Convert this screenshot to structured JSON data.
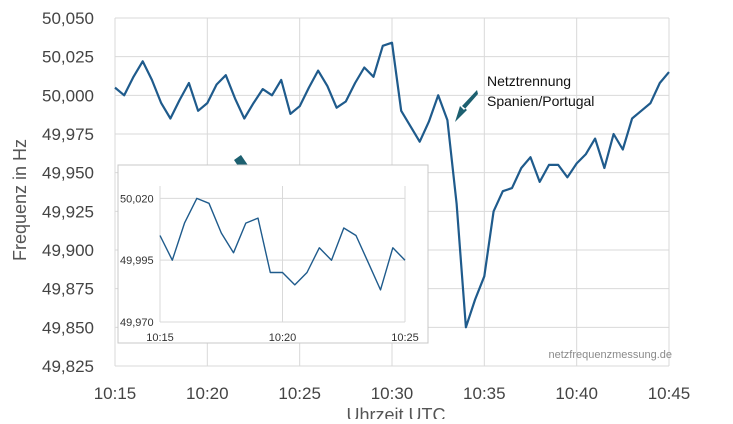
{
  "chart_data": [
    {
      "type": "line",
      "ylabel": "Frequenz in Hz",
      "xlabel": "Uhrzeit UTC",
      "x_unit": "time",
      "x_ticks": [
        "10:15",
        "10:20",
        "10:25",
        "10:30",
        "10:35",
        "10:40",
        "10:45"
      ],
      "xlim": [
        "10:15",
        "10:45"
      ],
      "y_ticks": [
        "49,825",
        "49,850",
        "49,875",
        "49,900",
        "49,925",
        "49,950",
        "49,975",
        "50,000",
        "50,025",
        "50,050"
      ],
      "ylim": [
        49.825,
        50.05
      ],
      "grid": true,
      "line_color": "#1f5b8c",
      "series": [
        {
          "x": [
            "10:15",
            "10:15:30",
            "10:16",
            "10:16:30",
            "10:17",
            "10:17:30",
            "10:18",
            "10:18:30",
            "10:19",
            "10:19:30",
            "10:20",
            "10:20:30",
            "10:21",
            "10:21:30",
            "10:22",
            "10:22:30",
            "10:23",
            "10:23:30",
            "10:24",
            "10:24:30",
            "10:25",
            "10:25:30",
            "10:26",
            "10:26:30",
            "10:27",
            "10:27:30",
            "10:28",
            "10:28:30",
            "10:29",
            "10:29:30",
            "10:30",
            "10:30:30",
            "10:31",
            "10:31:30",
            "10:32",
            "10:32:30",
            "10:33",
            "10:33:30",
            "10:34",
            "10:34:30",
            "10:35",
            "10:35:30",
            "10:36",
            "10:36:30",
            "10:37",
            "10:37:30",
            "10:38",
            "10:38:30",
            "10:39",
            "10:39:30",
            "10:40",
            "10:40:30",
            "10:41",
            "10:41:30",
            "10:42",
            "10:42:30",
            "10:43",
            "10:43:30",
            "10:44",
            "10:44:30",
            "10:45"
          ],
          "values": [
            50.005,
            50.0,
            50.012,
            50.022,
            50.01,
            49.995,
            49.985,
            49.997,
            50.008,
            49.99,
            49.995,
            50.007,
            50.013,
            49.998,
            49.985,
            49.995,
            50.004,
            50.0,
            50.01,
            49.988,
            49.993,
            50.005,
            50.016,
            50.006,
            49.992,
            49.996,
            50.008,
            50.018,
            50.012,
            50.032,
            50.034,
            49.99,
            49.98,
            49.97,
            49.983,
            50.0,
            49.984,
            49.93,
            49.85,
            49.868,
            49.883,
            49.925,
            49.938,
            49.94,
            49.953,
            49.96,
            49.944,
            49.955,
            49.955,
            49.947,
            49.956,
            49.962,
            49.972,
            49.953,
            49.975,
            49.965,
            49.985,
            49.99,
            49.995,
            50.008,
            50.015
          ]
        }
      ]
    },
    {
      "type": "line",
      "x_ticks": [
        "10:15",
        "10:20",
        "10:25"
      ],
      "xlim": [
        "10:15",
        "10:25"
      ],
      "y_ticks": [
        "49,970",
        "49,995",
        "50,020"
      ],
      "ylim": [
        49.97,
        50.025
      ],
      "series": [
        {
          "x": [
            "10:15",
            "10:15:30",
            "10:16",
            "10:16:30",
            "10:17",
            "10:17:30",
            "10:18",
            "10:18:30",
            "10:19",
            "10:19:30",
            "10:20",
            "10:20:30",
            "10:21",
            "10:21:30",
            "10:22",
            "10:22:30",
            "10:23",
            "10:23:30",
            "10:24",
            "10:24:30",
            "10:25"
          ],
          "values": [
            50.005,
            49.995,
            50.01,
            50.02,
            50.018,
            50.006,
            49.998,
            50.01,
            50.012,
            49.99,
            49.99,
            49.985,
            49.99,
            50.0,
            49.995,
            50.008,
            50.005,
            49.994,
            49.983,
            50.0,
            49.995
          ]
        }
      ]
    }
  ],
  "annotation": {
    "line1": "Netztrennung",
    "line2": "Spanien/Portugal"
  },
  "watermark": "netzfrequenzmessung.de",
  "colors": {
    "line": "#1f5b8c",
    "arrow": "#1d6070",
    "grid": "#d9d9d9"
  }
}
